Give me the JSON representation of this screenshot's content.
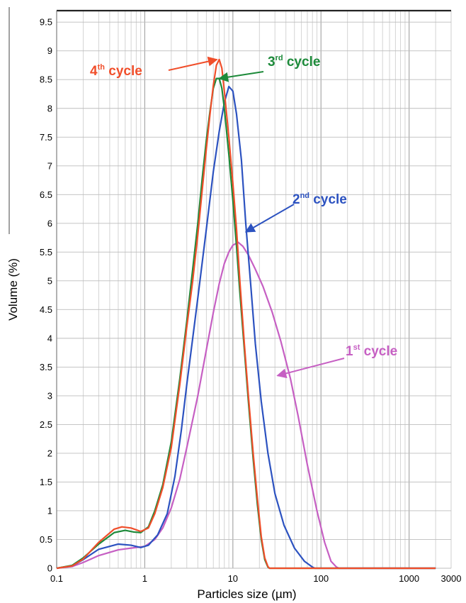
{
  "chart_data": {
    "type": "line",
    "title": "",
    "xlabel": "Particles size (µm)",
    "ylabel": "Volume (%)",
    "xscale": "log",
    "xlim": [
      0.1,
      3000
    ],
    "ylim": [
      0,
      9.7
    ],
    "xtick_labels": [
      "0.1",
      "1",
      "10",
      "100",
      "1000",
      "3000"
    ],
    "ytick_labels": [
      "0",
      "0.5",
      "1",
      "1.5",
      "2",
      "2.5",
      "3",
      "3.5",
      "4",
      "4.5",
      "5",
      "5.5",
      "6",
      "6.5",
      "7",
      "7.5",
      "8",
      "8.5",
      "9",
      "9.5"
    ],
    "grid": true,
    "legend": "none",
    "series": [
      {
        "name": "1st cycle",
        "color": "#c65fc3",
        "points": [
          [
            0.1,
            0
          ],
          [
            0.15,
            0.03
          ],
          [
            0.2,
            0.1
          ],
          [
            0.3,
            0.22
          ],
          [
            0.5,
            0.32
          ],
          [
            0.7,
            0.35
          ],
          [
            1.0,
            0.38
          ],
          [
            1.3,
            0.5
          ],
          [
            1.6,
            0.7
          ],
          [
            2.0,
            1.05
          ],
          [
            2.5,
            1.55
          ],
          [
            3.0,
            2.1
          ],
          [
            4.0,
            3.0
          ],
          [
            5.0,
            3.8
          ],
          [
            6.0,
            4.45
          ],
          [
            7.0,
            4.95
          ],
          [
            8.0,
            5.3
          ],
          [
            9.0,
            5.5
          ],
          [
            10.0,
            5.62
          ],
          [
            11.5,
            5.67
          ],
          [
            13.0,
            5.6
          ],
          [
            15.0,
            5.45
          ],
          [
            18.0,
            5.2
          ],
          [
            22.0,
            4.9
          ],
          [
            28.0,
            4.45
          ],
          [
            35.0,
            3.95
          ],
          [
            45.0,
            3.3
          ],
          [
            55.0,
            2.65
          ],
          [
            70.0,
            1.8
          ],
          [
            90.0,
            1.0
          ],
          [
            110.0,
            0.45
          ],
          [
            130.0,
            0.12
          ],
          [
            150.0,
            0.02
          ],
          [
            160.0,
            0
          ],
          [
            2000.0,
            0
          ]
        ]
      },
      {
        "name": "2nd cycle",
        "color": "#2c52c0",
        "points": [
          [
            0.1,
            0
          ],
          [
            0.15,
            0.04
          ],
          [
            0.2,
            0.15
          ],
          [
            0.3,
            0.33
          ],
          [
            0.5,
            0.42
          ],
          [
            0.7,
            0.4
          ],
          [
            0.9,
            0.36
          ],
          [
            1.1,
            0.4
          ],
          [
            1.4,
            0.58
          ],
          [
            1.8,
            0.95
          ],
          [
            2.2,
            1.6
          ],
          [
            2.6,
            2.4
          ],
          [
            3.0,
            3.2
          ],
          [
            3.5,
            4.0
          ],
          [
            4.0,
            4.7
          ],
          [
            5.0,
            5.9
          ],
          [
            6.0,
            6.9
          ],
          [
            7.0,
            7.6
          ],
          [
            8.0,
            8.1
          ],
          [
            9.0,
            8.38
          ],
          [
            10.0,
            8.3
          ],
          [
            11.0,
            7.9
          ],
          [
            12.5,
            7.1
          ],
          [
            14.0,
            6.0
          ],
          [
            16.0,
            4.9
          ],
          [
            18.0,
            3.9
          ],
          [
            21.0,
            2.9
          ],
          [
            25.0,
            2.0
          ],
          [
            30.0,
            1.3
          ],
          [
            38.0,
            0.75
          ],
          [
            50.0,
            0.35
          ],
          [
            65.0,
            0.12
          ],
          [
            80.0,
            0.02
          ],
          [
            85.0,
            0
          ],
          [
            2000.0,
            0
          ]
        ]
      },
      {
        "name": "3rd cycle",
        "color": "#1d8a3a",
        "points": [
          [
            0.1,
            0
          ],
          [
            0.15,
            0.05
          ],
          [
            0.2,
            0.18
          ],
          [
            0.3,
            0.42
          ],
          [
            0.45,
            0.62
          ],
          [
            0.6,
            0.66
          ],
          [
            0.75,
            0.63
          ],
          [
            0.9,
            0.62
          ],
          [
            1.1,
            0.72
          ],
          [
            1.3,
            1.0
          ],
          [
            1.6,
            1.45
          ],
          [
            2.0,
            2.2
          ],
          [
            2.5,
            3.3
          ],
          [
            3.0,
            4.3
          ],
          [
            3.5,
            5.2
          ],
          [
            4.0,
            6.0
          ],
          [
            4.5,
            6.8
          ],
          [
            5.0,
            7.45
          ],
          [
            5.5,
            7.95
          ],
          [
            6.0,
            8.35
          ],
          [
            6.5,
            8.52
          ],
          [
            7.0,
            8.52
          ],
          [
            7.5,
            8.35
          ],
          [
            8.0,
            8.0
          ],
          [
            9.0,
            7.2
          ],
          [
            10.0,
            6.4
          ],
          [
            11.0,
            5.6
          ],
          [
            12.0,
            4.8
          ],
          [
            13.5,
            3.8
          ],
          [
            15.0,
            2.9
          ],
          [
            17.0,
            1.9
          ],
          [
            19.0,
            1.1
          ],
          [
            21.0,
            0.5
          ],
          [
            23.0,
            0.15
          ],
          [
            25.0,
            0.02
          ],
          [
            26.0,
            0
          ],
          [
            2000.0,
            0
          ]
        ]
      },
      {
        "name": "4th cycle",
        "color": "#f04e2a",
        "points": [
          [
            0.1,
            0
          ],
          [
            0.15,
            0.04
          ],
          [
            0.2,
            0.16
          ],
          [
            0.3,
            0.45
          ],
          [
            0.45,
            0.68
          ],
          [
            0.55,
            0.72
          ],
          [
            0.7,
            0.7
          ],
          [
            0.9,
            0.64
          ],
          [
            1.1,
            0.7
          ],
          [
            1.3,
            0.95
          ],
          [
            1.6,
            1.4
          ],
          [
            2.0,
            2.1
          ],
          [
            2.5,
            3.2
          ],
          [
            3.0,
            4.2
          ],
          [
            3.5,
            5.0
          ],
          [
            4.0,
            5.8
          ],
          [
            4.5,
            6.6
          ],
          [
            5.0,
            7.3
          ],
          [
            5.5,
            7.9
          ],
          [
            6.0,
            8.4
          ],
          [
            6.5,
            8.75
          ],
          [
            7.0,
            8.85
          ],
          [
            7.5,
            8.7
          ],
          [
            8.0,
            8.3
          ],
          [
            9.0,
            7.5
          ],
          [
            10.0,
            6.7
          ],
          [
            11.0,
            5.9
          ],
          [
            12.0,
            5.0
          ],
          [
            13.5,
            3.9
          ],
          [
            15.0,
            3.0
          ],
          [
            17.0,
            2.0
          ],
          [
            19.0,
            1.2
          ],
          [
            21.0,
            0.55
          ],
          [
            23.0,
            0.18
          ],
          [
            25.0,
            0.03
          ],
          [
            26.0,
            0
          ],
          [
            2000.0,
            0
          ]
        ]
      }
    ],
    "annotations": [
      {
        "base": "4",
        "sup": "th",
        "rest": " cycle",
        "color": "#f04e2a",
        "arrow_to": [
          6.6,
          8.85
        ]
      },
      {
        "base": "3",
        "sup": "rd",
        "rest": " cycle",
        "color": "#1d8a3a",
        "arrow_to": [
          7.0,
          8.52
        ]
      },
      {
        "base": "2",
        "sup": "nd",
        "rest": " cycle",
        "color": "#2c52c0",
        "arrow_to": [
          14.0,
          5.85
        ]
      },
      {
        "base": "1",
        "sup": "st",
        "rest": " cycle",
        "color": "#c65fc3",
        "arrow_to": [
          32.0,
          3.35
        ]
      }
    ]
  }
}
